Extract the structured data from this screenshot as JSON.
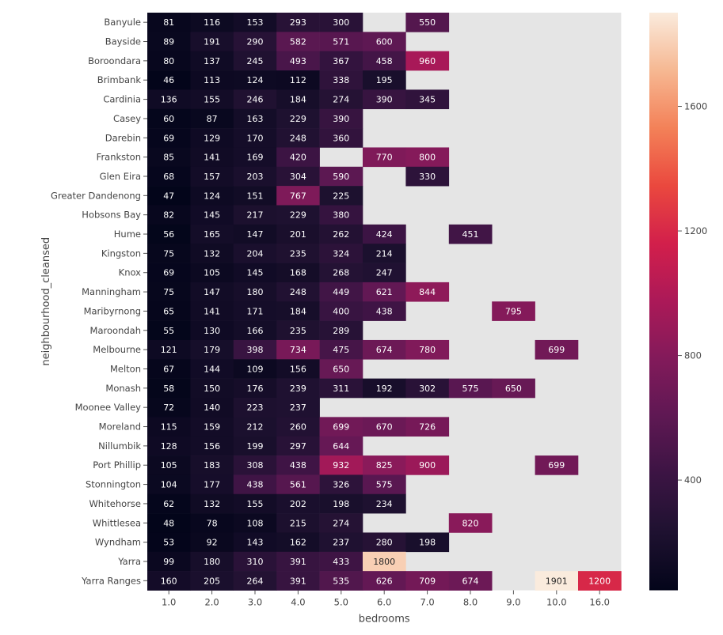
{
  "chart_data": {
    "type": "heatmap",
    "xlabel": "bedrooms",
    "ylabel": "neighbourhood_cleansed",
    "columns": [
      "1.0",
      "2.0",
      "3.0",
      "4.0",
      "5.0",
      "6.0",
      "7.0",
      "8.0",
      "9.0",
      "10.0",
      "16.0"
    ],
    "rows": [
      "Banyule",
      "Bayside",
      "Boroondara",
      "Brimbank",
      "Cardinia",
      "Casey",
      "Darebin",
      "Frankston",
      "Glen Eira",
      "Greater Dandenong",
      "Hobsons Bay",
      "Hume",
      "Kingston",
      "Knox",
      "Manningham",
      "Maribyrnong",
      "Maroondah",
      "Melbourne",
      "Melton",
      "Monash",
      "Moonee Valley",
      "Moreland",
      "Nillumbik",
      "Port Phillip",
      "Stonnington",
      "Whitehorse",
      "Whittlesea",
      "Wyndham",
      "Yarra",
      "Yarra Ranges"
    ],
    "values": [
      [
        81,
        116,
        153,
        293,
        300,
        null,
        550,
        null,
        null,
        null,
        null
      ],
      [
        89,
        191,
        290,
        582,
        571,
        600,
        null,
        null,
        null,
        null,
        null
      ],
      [
        80,
        137,
        245,
        493,
        367,
        458,
        960,
        null,
        null,
        null,
        null
      ],
      [
        46,
        113,
        124,
        112,
        338,
        195,
        null,
        null,
        null,
        null,
        null
      ],
      [
        136,
        155,
        246,
        184,
        274,
        390,
        345,
        null,
        null,
        null,
        null
      ],
      [
        60,
        87,
        163,
        229,
        390,
        null,
        null,
        null,
        null,
        null,
        null
      ],
      [
        69,
        129,
        170,
        248,
        360,
        null,
        null,
        null,
        null,
        null,
        null
      ],
      [
        85,
        141,
        169,
        420,
        null,
        770,
        800,
        null,
        null,
        null,
        null
      ],
      [
        68,
        157,
        203,
        304,
        590,
        null,
        330,
        null,
        null,
        null,
        null
      ],
      [
        47,
        124,
        151,
        767,
        225,
        null,
        null,
        null,
        null,
        null,
        null
      ],
      [
        82,
        145,
        217,
        229,
        380,
        null,
        null,
        null,
        null,
        null,
        null
      ],
      [
        56,
        165,
        147,
        201,
        262,
        424,
        null,
        451,
        null,
        null,
        null
      ],
      [
        75,
        132,
        204,
        235,
        324,
        214,
        null,
        null,
        null,
        null,
        null
      ],
      [
        69,
        105,
        145,
        168,
        268,
        247,
        null,
        null,
        null,
        null,
        null
      ],
      [
        75,
        147,
        180,
        248,
        449,
        621,
        844,
        null,
        null,
        null,
        null
      ],
      [
        65,
        141,
        171,
        184,
        400,
        438,
        null,
        null,
        795,
        null,
        null
      ],
      [
        55,
        130,
        166,
        235,
        289,
        null,
        null,
        null,
        null,
        null,
        null
      ],
      [
        121,
        179,
        398,
        734,
        475,
        674,
        780,
        null,
        null,
        699,
        null
      ],
      [
        67,
        144,
        109,
        156,
        650,
        null,
        null,
        null,
        null,
        null,
        null
      ],
      [
        58,
        150,
        176,
        239,
        311,
        192,
        302,
        575,
        650,
        null,
        null
      ],
      [
        72,
        140,
        223,
        237,
        null,
        null,
        null,
        null,
        null,
        null,
        null
      ],
      [
        115,
        159,
        212,
        260,
        699,
        670,
        726,
        null,
        null,
        null,
        null
      ],
      [
        128,
        156,
        199,
        297,
        644,
        null,
        null,
        null,
        null,
        null,
        null
      ],
      [
        105,
        183,
        308,
        438,
        932,
        825,
        900,
        null,
        null,
        699,
        null
      ],
      [
        104,
        177,
        438,
        561,
        326,
        575,
        null,
        null,
        null,
        null,
        null
      ],
      [
        62,
        132,
        155,
        202,
        198,
        234,
        null,
        null,
        null,
        null,
        null
      ],
      [
        48,
        78,
        108,
        215,
        274,
        null,
        null,
        820,
        null,
        null,
        null
      ],
      [
        53,
        92,
        143,
        162,
        237,
        280,
        198,
        null,
        null,
        null,
        null
      ],
      [
        99,
        180,
        310,
        391,
        433,
        1800,
        null,
        null,
        null,
        null,
        null
      ],
      [
        160,
        205,
        264,
        391,
        535,
        626,
        709,
        674,
        null,
        1901,
        1200
      ]
    ],
    "vmin": 46,
    "vmax": 1901,
    "colorbar_ticks": [
      400,
      800,
      1200,
      1600
    ],
    "colormap": "rocket",
    "missing_color": "#e5e5e5",
    "grid": false
  }
}
